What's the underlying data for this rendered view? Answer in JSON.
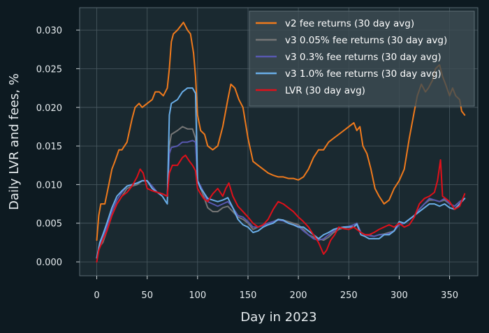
{
  "chart_data": {
    "type": "line",
    "title": "",
    "xlabel": "Day in 2023",
    "ylabel": "Daily LVR and fees, %",
    "xlim": [
      -17,
      378
    ],
    "ylim": [
      -0.0018,
      0.0329
    ],
    "xticks": [
      0,
      50,
      100,
      150,
      200,
      250,
      300,
      350
    ],
    "xtick_labels": [
      "0",
      "50",
      "100",
      "150",
      "200",
      "250",
      "300",
      "350"
    ],
    "yticks": [
      0.0,
      0.005,
      0.01,
      0.015,
      0.02,
      0.025,
      0.03
    ],
    "ytick_labels": [
      "0.000",
      "0.005",
      "0.010",
      "0.015",
      "0.020",
      "0.025",
      "0.030"
    ],
    "grid": true,
    "legend_position": "top-right",
    "series": [
      {
        "name": "v2 fee returns (30 day avg)",
        "color": "#f07a1c",
        "x": [
          0,
          2,
          4,
          8,
          12,
          15,
          18,
          22,
          25,
          30,
          35,
          38,
          42,
          45,
          50,
          55,
          58,
          62,
          66,
          70,
          72,
          74,
          76,
          80,
          83,
          86,
          90,
          93,
          96,
          98,
          100,
          103,
          107,
          110,
          115,
          120,
          125,
          130,
          133,
          137,
          141,
          145,
          150,
          155,
          160,
          165,
          170,
          175,
          180,
          185,
          190,
          195,
          200,
          205,
          210,
          215,
          220,
          225,
          230,
          235,
          240,
          245,
          250,
          255,
          258,
          261,
          264,
          268,
          272,
          276,
          280,
          285,
          290,
          295,
          300,
          305,
          310,
          315,
          318,
          322,
          326,
          329,
          333,
          336,
          340,
          343,
          346,
          350,
          353,
          356,
          360,
          362,
          365
        ],
        "y": [
          0.0028,
          0.006,
          0.0075,
          0.0075,
          0.01,
          0.012,
          0.013,
          0.0145,
          0.0145,
          0.0155,
          0.0185,
          0.02,
          0.0205,
          0.02,
          0.0205,
          0.021,
          0.022,
          0.022,
          0.0215,
          0.0225,
          0.025,
          0.0285,
          0.0295,
          0.03,
          0.0305,
          0.031,
          0.03,
          0.0295,
          0.027,
          0.024,
          0.019,
          0.017,
          0.0165,
          0.015,
          0.0145,
          0.015,
          0.0175,
          0.021,
          0.023,
          0.0225,
          0.021,
          0.02,
          0.016,
          0.013,
          0.0125,
          0.012,
          0.0115,
          0.0112,
          0.011,
          0.011,
          0.0108,
          0.0108,
          0.0106,
          0.011,
          0.012,
          0.0135,
          0.0145,
          0.0145,
          0.0155,
          0.016,
          0.0165,
          0.017,
          0.0175,
          0.018,
          0.017,
          0.0175,
          0.015,
          0.014,
          0.012,
          0.0095,
          0.0085,
          0.0075,
          0.008,
          0.0095,
          0.0105,
          0.012,
          0.016,
          0.0195,
          0.0215,
          0.023,
          0.022,
          0.0225,
          0.0235,
          0.025,
          0.0255,
          0.024,
          0.023,
          0.0215,
          0.0225,
          0.0215,
          0.021,
          0.0195,
          0.019
        ]
      },
      {
        "name": "v3 0.05% fee returns (30 day avg)",
        "color": "#767676",
        "x": [
          0,
          3,
          6,
          10,
          15,
          20,
          25,
          30,
          35,
          40,
          45,
          50,
          55,
          60,
          65,
          70,
          72,
          74,
          80,
          85,
          90,
          95,
          98,
          100,
          103,
          106,
          110,
          115,
          120,
          125,
          130,
          135,
          140,
          145,
          150,
          155,
          160,
          165,
          170,
          175,
          180,
          185,
          190,
          195,
          200,
          205,
          210,
          215,
          220,
          225,
          230,
          235,
          240,
          245,
          250,
          255,
          258,
          262,
          266,
          270,
          275,
          280,
          285,
          290,
          295,
          300,
          305,
          310,
          315,
          320,
          325,
          330,
          335,
          340,
          345,
          350,
          355,
          360,
          365
        ],
        "y": [
          0.0005,
          0.002,
          0.0025,
          0.004,
          0.006,
          0.0075,
          0.0085,
          0.0095,
          0.0098,
          0.01,
          0.0105,
          0.0105,
          0.0095,
          0.009,
          0.0088,
          0.0085,
          0.015,
          0.0165,
          0.017,
          0.0175,
          0.0172,
          0.0172,
          0.016,
          0.0105,
          0.0095,
          0.0085,
          0.007,
          0.0065,
          0.0065,
          0.007,
          0.0072,
          0.0065,
          0.0058,
          0.0055,
          0.005,
          0.0042,
          0.0045,
          0.0048,
          0.005,
          0.0052,
          0.0055,
          0.0054,
          0.0052,
          0.005,
          0.0048,
          0.0042,
          0.0035,
          0.0032,
          0.003,
          0.0028,
          0.0032,
          0.0038,
          0.0042,
          0.0044,
          0.0045,
          0.0048,
          0.005,
          0.0038,
          0.0035,
          0.0035,
          0.0033,
          0.0035,
          0.0036,
          0.0038,
          0.004,
          0.0048,
          0.005,
          0.0055,
          0.006,
          0.0068,
          0.0075,
          0.008,
          0.008,
          0.0078,
          0.008,
          0.0075,
          0.0072,
          0.0078,
          0.0082
        ]
      },
      {
        "name": "v3 0.3% fee returns (30 day avg)",
        "color": "#5858b0",
        "x": [
          0,
          3,
          6,
          10,
          15,
          20,
          25,
          30,
          35,
          40,
          45,
          50,
          55,
          60,
          65,
          70,
          72,
          74,
          80,
          85,
          90,
          95,
          98,
          100,
          103,
          106,
          110,
          115,
          120,
          125,
          130,
          135,
          140,
          145,
          150,
          155,
          160,
          165,
          170,
          175,
          180,
          185,
          190,
          195,
          200,
          205,
          210,
          215,
          220,
          225,
          230,
          235,
          240,
          245,
          250,
          255,
          258,
          262,
          266,
          270,
          275,
          280,
          285,
          290,
          295,
          300,
          305,
          310,
          315,
          320,
          325,
          330,
          335,
          340,
          345,
          350,
          355,
          360,
          365
        ],
        "y": [
          0.0005,
          0.0022,
          0.003,
          0.0045,
          0.0065,
          0.008,
          0.009,
          0.0098,
          0.01,
          0.0102,
          0.0105,
          0.0105,
          0.0098,
          0.009,
          0.0088,
          0.0085,
          0.014,
          0.0148,
          0.015,
          0.0155,
          0.0155,
          0.0157,
          0.0155,
          0.0105,
          0.0098,
          0.009,
          0.0078,
          0.0075,
          0.0072,
          0.0075,
          0.0078,
          0.007,
          0.006,
          0.0058,
          0.0052,
          0.0045,
          0.0045,
          0.0047,
          0.005,
          0.0052,
          0.0054,
          0.0053,
          0.005,
          0.0048,
          0.0046,
          0.004,
          0.0035,
          0.003,
          0.0028,
          0.003,
          0.0035,
          0.004,
          0.0044,
          0.0045,
          0.0046,
          0.0048,
          0.005,
          0.0038,
          0.0035,
          0.0034,
          0.0033,
          0.0035,
          0.0035,
          0.0037,
          0.004,
          0.0048,
          0.005,
          0.0055,
          0.006,
          0.0068,
          0.0075,
          0.0082,
          0.008,
          0.0078,
          0.0082,
          0.0075,
          0.0072,
          0.0078,
          0.0082
        ]
      },
      {
        "name": "v3 1.0% fee returns (30 day avg)",
        "color": "#6aaee8",
        "x": [
          0,
          3,
          6,
          10,
          15,
          20,
          25,
          30,
          35,
          40,
          45,
          50,
          55,
          60,
          65,
          70,
          72,
          74,
          80,
          85,
          90,
          95,
          98,
          100,
          103,
          106,
          110,
          115,
          120,
          125,
          130,
          135,
          140,
          145,
          150,
          155,
          160,
          165,
          170,
          175,
          180,
          185,
          190,
          195,
          200,
          205,
          210,
          215,
          220,
          225,
          230,
          235,
          240,
          245,
          250,
          255,
          258,
          262,
          266,
          270,
          275,
          280,
          285,
          290,
          295,
          300,
          305,
          310,
          315,
          320,
          325,
          330,
          335,
          340,
          345,
          350,
          355,
          360,
          365
        ],
        "y": [
          0.0005,
          0.0025,
          0.0035,
          0.005,
          0.007,
          0.0085,
          0.0092,
          0.0098,
          0.01,
          0.0102,
          0.0105,
          0.0105,
          0.0095,
          0.009,
          0.0085,
          0.0075,
          0.019,
          0.0205,
          0.021,
          0.022,
          0.0225,
          0.0225,
          0.0218,
          0.0105,
          0.0095,
          0.009,
          0.0082,
          0.008,
          0.0078,
          0.008,
          0.0083,
          0.007,
          0.0055,
          0.0048,
          0.0045,
          0.0038,
          0.004,
          0.0045,
          0.0048,
          0.005,
          0.0055,
          0.0054,
          0.005,
          0.0048,
          0.0045,
          0.0045,
          0.004,
          0.0035,
          0.003,
          0.0035,
          0.0038,
          0.0042,
          0.0044,
          0.0045,
          0.0045,
          0.0045,
          0.0049,
          0.0035,
          0.0033,
          0.003,
          0.003,
          0.003,
          0.0035,
          0.0035,
          0.004,
          0.0052,
          0.005,
          0.0055,
          0.006,
          0.0065,
          0.007,
          0.0075,
          0.0075,
          0.0072,
          0.0075,
          0.007,
          0.0068,
          0.0075,
          0.0082
        ]
      },
      {
        "name": "LVR (30 day avg)",
        "color": "#e0101a",
        "x": [
          0,
          2,
          5,
          10,
          15,
          20,
          25,
          30,
          35,
          40,
          43,
          46,
          50,
          55,
          60,
          65,
          70,
          72,
          75,
          80,
          85,
          88,
          92,
          95,
          98,
          100,
          103,
          106,
          110,
          115,
          120,
          125,
          128,
          131,
          135,
          140,
          145,
          150,
          155,
          160,
          165,
          170,
          175,
          180,
          185,
          190,
          195,
          200,
          205,
          210,
          215,
          220,
          225,
          228,
          232,
          236,
          240,
          245,
          250,
          255,
          258,
          262,
          266,
          270,
          275,
          280,
          285,
          290,
          295,
          300,
          305,
          310,
          315,
          320,
          325,
          330,
          335,
          338,
          341,
          343,
          346,
          350,
          355,
          360,
          365
        ],
        "y": [
          0.0,
          0.0015,
          0.0025,
          0.004,
          0.006,
          0.0075,
          0.0085,
          0.009,
          0.0098,
          0.011,
          0.012,
          0.0115,
          0.0095,
          0.0092,
          0.009,
          0.0088,
          0.0085,
          0.0115,
          0.0125,
          0.0125,
          0.0135,
          0.0138,
          0.013,
          0.0125,
          0.0118,
          0.0095,
          0.0088,
          0.0082,
          0.0078,
          0.0088,
          0.0095,
          0.0085,
          0.0095,
          0.0102,
          0.0085,
          0.0072,
          0.0065,
          0.0058,
          0.005,
          0.0045,
          0.0048,
          0.0055,
          0.0068,
          0.0078,
          0.0075,
          0.007,
          0.0065,
          0.0058,
          0.0052,
          0.0045,
          0.0035,
          0.0025,
          0.001,
          0.0015,
          0.0028,
          0.0035,
          0.0045,
          0.0043,
          0.0042,
          0.0045,
          0.0042,
          0.0038,
          0.0035,
          0.0035,
          0.0038,
          0.0042,
          0.0045,
          0.0048,
          0.0045,
          0.005,
          0.0045,
          0.0048,
          0.0058,
          0.0075,
          0.0082,
          0.0085,
          0.009,
          0.0105,
          0.0132,
          0.0085,
          0.0082,
          0.0078,
          0.0068,
          0.0072,
          0.0088
        ]
      }
    ]
  }
}
